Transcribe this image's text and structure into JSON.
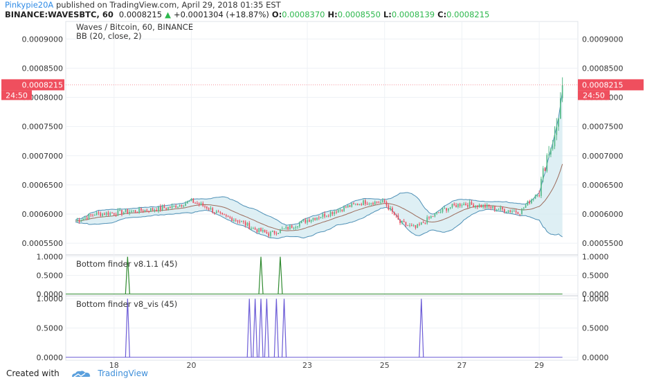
{
  "header": {
    "author": "Pinkypie20A",
    "published_text": "published on TradingView.com, April 29, 2018 01:35 EST",
    "symbol": "BINANCE:WAVESBTC, 60",
    "last_price": "0.0008215",
    "change_arrow": "▲",
    "change_text": "+0.0001304 (+18.87%)",
    "o_label": "O:",
    "o_value": "0.0008370",
    "h_label": "H:",
    "h_value": "0.0008550",
    "l_label": "L:",
    "l_value": "0.0008139",
    "c_label": "C:",
    "c_value": "0.0008215"
  },
  "footer": {
    "created_with": "Created with",
    "brand": "TradingView"
  },
  "colors": {
    "up": "#53b987",
    "down": "#eb4d5c",
    "band": "#4d8fb5",
    "band_fill": "#d3eaf0",
    "basis": "#9c6b5b",
    "price_label": "#ef4f5e",
    "finder1": "#2f8a2f",
    "finder2": "#6b5bd6",
    "grid": "#eef1f5"
  },
  "chart_data": [
    {
      "type": "line",
      "title": "Waves / Bitcoin, 60, BINANCE",
      "indicator": "BB (20, close, 2)",
      "y_ticks": [
        "0.0005500",
        "0.0006000",
        "0.0006500",
        "0.0007000",
        "0.0007500",
        "0.0008000",
        "0.0008500",
        "0.0009000"
      ],
      "ylim": [
        0.00053,
        0.00093
      ],
      "x_ticks": [
        "18",
        "20",
        "23",
        "25",
        "27",
        "29"
      ],
      "x_tick_days": [
        18,
        20,
        23,
        25,
        27,
        29
      ],
      "xlim": [
        16.75,
        30.0
      ],
      "last_price_label": "0.0008215",
      "countdown_label": "24:50",
      "series": [
        {
          "x": [
            17.0,
            17.5,
            18.0,
            18.5,
            19.0,
            19.5,
            20.0,
            20.4,
            20.8,
            21.2,
            21.6,
            22.0,
            22.5,
            23.0,
            23.5,
            24.0,
            24.5,
            25.0,
            25.4,
            25.8,
            26.2,
            26.6,
            27.0,
            27.5,
            28.0,
            28.5,
            29.0,
            29.2,
            29.4,
            29.5,
            29.6
          ],
          "y": [
            0.000588,
            0.0006,
            0.000602,
            0.000605,
            0.000608,
            0.000612,
            0.000622,
            0.000612,
            0.000596,
            0.00059,
            0.000575,
            0.000566,
            0.000576,
            0.00059,
            0.0006,
            0.000612,
            0.000621,
            0.00062,
            0.000585,
            0.000576,
            0.000595,
            0.00061,
            0.000618,
            0.000614,
            0.000608,
            0.000604,
            0.00064,
            0.0007,
            0.00073,
            0.00077,
            0.000821
          ]
        }
      ]
    },
    {
      "type": "line",
      "title": "Bottom finder v8.1.1 (45)",
      "y_ticks": [
        "0.0000",
        "0.5000",
        "1.0000"
      ],
      "ylim": [
        -0.05,
        1.05
      ],
      "xlim": [
        16.75,
        30.0
      ],
      "series": [
        {
          "spikes_at": [
            18.35,
            21.8,
            22.3
          ],
          "values": [
            1,
            1,
            1
          ]
        }
      ]
    },
    {
      "type": "line",
      "title": "Bottom finder v8_vis (45)",
      "y_ticks": [
        "0.0000",
        "0.5000",
        "1.0000"
      ],
      "ylim": [
        -0.05,
        1.05
      ],
      "xlim": [
        16.75,
        30.0
      ],
      "series": [
        {
          "spikes_at": [
            18.35,
            21.5,
            21.65,
            21.8,
            21.95,
            22.2,
            22.4,
            25.95
          ],
          "values": [
            1,
            1,
            1,
            1,
            1,
            1,
            1,
            1
          ]
        }
      ]
    }
  ]
}
